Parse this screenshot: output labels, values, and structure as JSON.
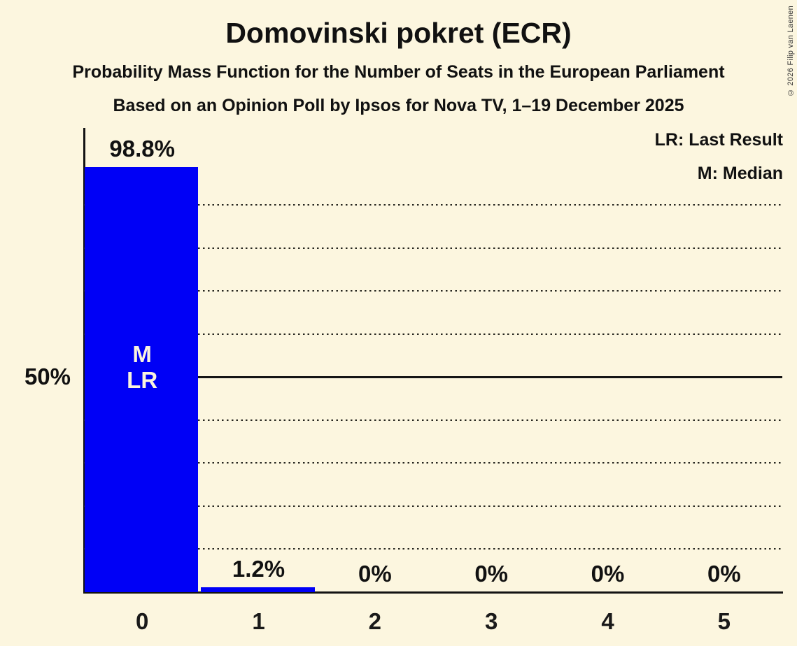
{
  "header": {
    "title": "Domovinski pokret (ECR)",
    "subtitle1": "Probability Mass Function for the Number of Seats in the European Parliament",
    "subtitle2": "Based on an Opinion Poll by Ipsos for Nova TV, 1–19 December 2025"
  },
  "legend": {
    "last_result": "LR: Last Result",
    "median": "M: Median"
  },
  "copyright": "© 2026 Filip van Laenen",
  "colors": {
    "background": "#fcf6df",
    "bar": "#0000f6",
    "text": "#111111",
    "annotation_text": "#faf3dd"
  },
  "y_axis": {
    "tick_label": "50%",
    "tick_value": 50
  },
  "chart_data": {
    "type": "bar",
    "title": "Domovinski pokret (ECR)",
    "categories": [
      "0",
      "1",
      "2",
      "3",
      "4",
      "5"
    ],
    "values": [
      98.8,
      1.2,
      0,
      0,
      0,
      0
    ],
    "bar_labels": [
      "98.8%",
      "1.2%",
      "0%",
      "0%",
      "0%",
      "0%"
    ],
    "ylim": [
      0,
      100
    ],
    "y_gridlines_pct": [
      10,
      20,
      30,
      40,
      50,
      60,
      70,
      80,
      90
    ],
    "y_major_line_pct": 50,
    "legend_position": "top-right",
    "grid": "dotted-horizontal",
    "annotations": [
      {
        "category_index": 0,
        "lines": [
          "M",
          "LR"
        ]
      }
    ]
  }
}
